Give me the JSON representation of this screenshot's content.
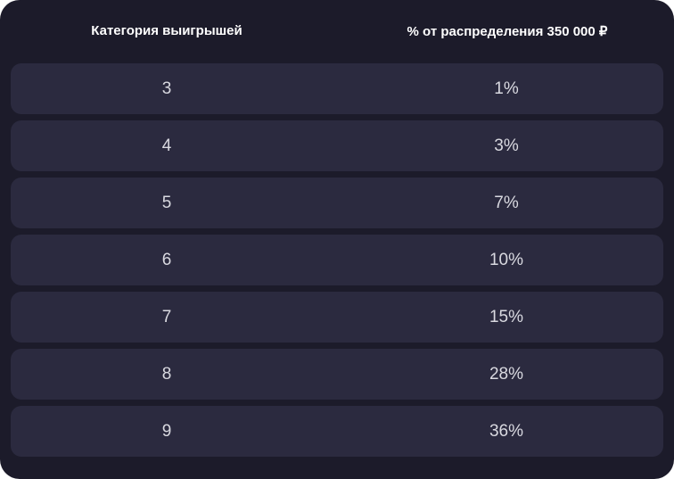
{
  "table": {
    "headers": [
      "Категория выигрышей",
      "% от распределения 350 000 ₽"
    ],
    "rows": [
      [
        "3",
        "1%"
      ],
      [
        "4",
        "3%"
      ],
      [
        "5",
        "7%"
      ],
      [
        "6",
        "10%"
      ],
      [
        "7",
        "15%"
      ],
      [
        "8",
        "28%"
      ],
      [
        "9",
        "36%"
      ]
    ]
  },
  "colors": {
    "background": "#1c1b2a",
    "row": "#2b2a3f",
    "text": "#d9d9e0"
  }
}
